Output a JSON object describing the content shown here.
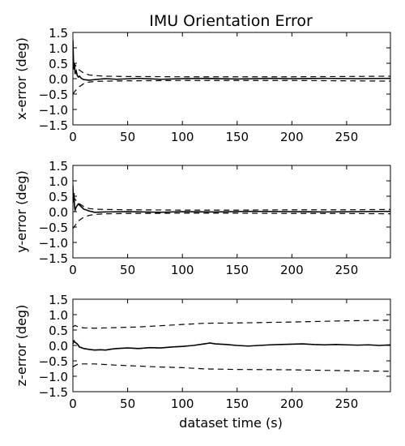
{
  "figure": {
    "title": "IMU Orientation Error",
    "xlabel": "dataset time (s)"
  },
  "chart_data": [
    {
      "type": "line",
      "ylabel": "x-error (deg)",
      "xlim": [
        0,
        290
      ],
      "ylim": [
        -1.5,
        1.5
      ],
      "xticks": [
        0,
        50,
        100,
        150,
        200,
        250
      ],
      "yticks": [
        1.5,
        1.0,
        0.5,
        0.0,
        -0.5,
        -1.0,
        -1.5
      ],
      "grid": false,
      "series": [
        {
          "role": "error",
          "style": "solid",
          "points": [
            [
              0,
              1.25
            ],
            [
              0.5,
              0.6
            ],
            [
              1,
              0.3
            ],
            [
              1.5,
              0.5
            ],
            [
              2,
              0.15
            ],
            [
              3,
              0.25
            ],
            [
              4,
              0.1
            ],
            [
              5,
              0.05
            ],
            [
              6,
              0.08
            ],
            [
              8,
              0.0
            ],
            [
              10,
              -0.03
            ],
            [
              15,
              -0.05
            ],
            [
              20,
              -0.03
            ],
            [
              30,
              0.0
            ],
            [
              40,
              -0.02
            ],
            [
              60,
              0.01
            ],
            [
              80,
              -0.02
            ],
            [
              100,
              0.0
            ],
            [
              120,
              0.01
            ],
            [
              150,
              -0.01
            ],
            [
              180,
              0.01
            ],
            [
              200,
              0.0
            ],
            [
              230,
              0.01
            ],
            [
              260,
              0.0
            ],
            [
              290,
              0.01
            ]
          ]
        },
        {
          "role": "bound-upper",
          "style": "dashed",
          "points": [
            [
              0,
              0.55
            ],
            [
              2,
              0.45
            ],
            [
              5,
              0.3
            ],
            [
              10,
              0.18
            ],
            [
              15,
              0.12
            ],
            [
              20,
              0.1
            ],
            [
              30,
              0.08
            ],
            [
              50,
              0.07
            ],
            [
              100,
              0.06
            ],
            [
              150,
              0.06
            ],
            [
              200,
              0.06
            ],
            [
              250,
              0.07
            ],
            [
              290,
              0.08
            ]
          ]
        },
        {
          "role": "bound-lower",
          "style": "dashed",
          "points": [
            [
              0,
              -0.5
            ],
            [
              2,
              -0.4
            ],
            [
              5,
              -0.28
            ],
            [
              10,
              -0.16
            ],
            [
              15,
              -0.11
            ],
            [
              20,
              -0.09
            ],
            [
              30,
              -0.08
            ],
            [
              50,
              -0.07
            ],
            [
              100,
              -0.06
            ],
            [
              150,
              -0.06
            ],
            [
              200,
              -0.06
            ],
            [
              250,
              -0.07
            ],
            [
              290,
              -0.08
            ]
          ]
        }
      ]
    },
    {
      "type": "line",
      "ylabel": "y-error (deg)",
      "xlim": [
        0,
        290
      ],
      "ylim": [
        -1.5,
        1.5
      ],
      "xticks": [
        0,
        50,
        100,
        150,
        200,
        250
      ],
      "yticks": [
        1.5,
        1.0,
        0.5,
        0.0,
        -0.5,
        -1.0,
        -1.5
      ],
      "grid": false,
      "series": [
        {
          "role": "error",
          "style": "solid",
          "points": [
            [
              0,
              0.85
            ],
            [
              0.5,
              0.3
            ],
            [
              1,
              0.6
            ],
            [
              1.5,
              0.15
            ],
            [
              2,
              0.05
            ],
            [
              3,
              0.15
            ],
            [
              5,
              0.25
            ],
            [
              7,
              0.18
            ],
            [
              10,
              0.08
            ],
            [
              15,
              0.02
            ],
            [
              20,
              -0.02
            ],
            [
              30,
              -0.01
            ],
            [
              50,
              0.0
            ],
            [
              80,
              -0.02
            ],
            [
              100,
              0.0
            ],
            [
              130,
              -0.01
            ],
            [
              160,
              0.01
            ],
            [
              200,
              0.0
            ],
            [
              230,
              -0.01
            ],
            [
              260,
              0.0
            ],
            [
              290,
              0.01
            ]
          ]
        },
        {
          "role": "bound-upper",
          "style": "dashed",
          "points": [
            [
              0,
              0.5
            ],
            [
              2,
              0.4
            ],
            [
              5,
              0.28
            ],
            [
              10,
              0.16
            ],
            [
              15,
              0.1
            ],
            [
              20,
              0.08
            ],
            [
              30,
              0.07
            ],
            [
              50,
              0.06
            ],
            [
              100,
              0.05
            ],
            [
              150,
              0.05
            ],
            [
              200,
              0.06
            ],
            [
              250,
              0.06
            ],
            [
              290,
              0.07
            ]
          ]
        },
        {
          "role": "bound-lower",
          "style": "dashed",
          "points": [
            [
              0,
              -0.55
            ],
            [
              2,
              -0.45
            ],
            [
              5,
              -0.3
            ],
            [
              10,
              -0.18
            ],
            [
              15,
              -0.12
            ],
            [
              20,
              -0.09
            ],
            [
              30,
              -0.07
            ],
            [
              50,
              -0.06
            ],
            [
              100,
              -0.05
            ],
            [
              150,
              -0.05
            ],
            [
              200,
              -0.06
            ],
            [
              250,
              -0.06
            ],
            [
              290,
              -0.07
            ]
          ]
        }
      ]
    },
    {
      "type": "line",
      "ylabel": "z-error (deg)",
      "xlim": [
        0,
        290
      ],
      "ylim": [
        -1.5,
        1.5
      ],
      "xticks": [
        0,
        50,
        100,
        150,
        200,
        250
      ],
      "yticks": [
        1.5,
        1.0,
        0.5,
        0.0,
        -0.5,
        -1.0,
        -1.5
      ],
      "grid": false,
      "series": [
        {
          "role": "error",
          "style": "solid",
          "points": [
            [
              0,
              0.05
            ],
            [
              1,
              0.15
            ],
            [
              2,
              0.1
            ],
            [
              4,
              0.05
            ],
            [
              6,
              -0.05
            ],
            [
              10,
              -0.1
            ],
            [
              15,
              -0.13
            ],
            [
              20,
              -0.15
            ],
            [
              25,
              -0.14
            ],
            [
              30,
              -0.15
            ],
            [
              35,
              -0.12
            ],
            [
              40,
              -0.1
            ],
            [
              50,
              -0.08
            ],
            [
              60,
              -0.1
            ],
            [
              70,
              -0.07
            ],
            [
              80,
              -0.08
            ],
            [
              90,
              -0.05
            ],
            [
              100,
              -0.03
            ],
            [
              110,
              0.0
            ],
            [
              120,
              0.05
            ],
            [
              125,
              0.08
            ],
            [
              130,
              0.05
            ],
            [
              140,
              0.03
            ],
            [
              150,
              0.0
            ],
            [
              160,
              -0.02
            ],
            [
              170,
              0.0
            ],
            [
              180,
              0.02
            ],
            [
              190,
              0.03
            ],
            [
              200,
              0.04
            ],
            [
              210,
              0.05
            ],
            [
              220,
              0.03
            ],
            [
              230,
              0.02
            ],
            [
              240,
              0.03
            ],
            [
              250,
              0.02
            ],
            [
              260,
              0.01
            ],
            [
              270,
              0.02
            ],
            [
              280,
              0.0
            ],
            [
              290,
              0.02
            ]
          ]
        },
        {
          "role": "bound-upper",
          "style": "dashed",
          "points": [
            [
              0,
              0.6
            ],
            [
              2,
              0.65
            ],
            [
              5,
              0.6
            ],
            [
              10,
              0.57
            ],
            [
              20,
              0.56
            ],
            [
              40,
              0.58
            ],
            [
              60,
              0.6
            ],
            [
              80,
              0.64
            ],
            [
              100,
              0.68
            ],
            [
              120,
              0.72
            ],
            [
              150,
              0.73
            ],
            [
              200,
              0.76
            ],
            [
              250,
              0.8
            ],
            [
              290,
              0.82
            ]
          ]
        },
        {
          "role": "bound-lower",
          "style": "dashed",
          "points": [
            [
              0,
              -0.7
            ],
            [
              2,
              -0.65
            ],
            [
              5,
              -0.6
            ],
            [
              10,
              -0.6
            ],
            [
              20,
              -0.6
            ],
            [
              40,
              -0.64
            ],
            [
              60,
              -0.67
            ],
            [
              80,
              -0.7
            ],
            [
              100,
              -0.72
            ],
            [
              120,
              -0.76
            ],
            [
              150,
              -0.78
            ],
            [
              200,
              -0.79
            ],
            [
              250,
              -0.82
            ],
            [
              290,
              -0.84
            ]
          ]
        }
      ]
    }
  ]
}
